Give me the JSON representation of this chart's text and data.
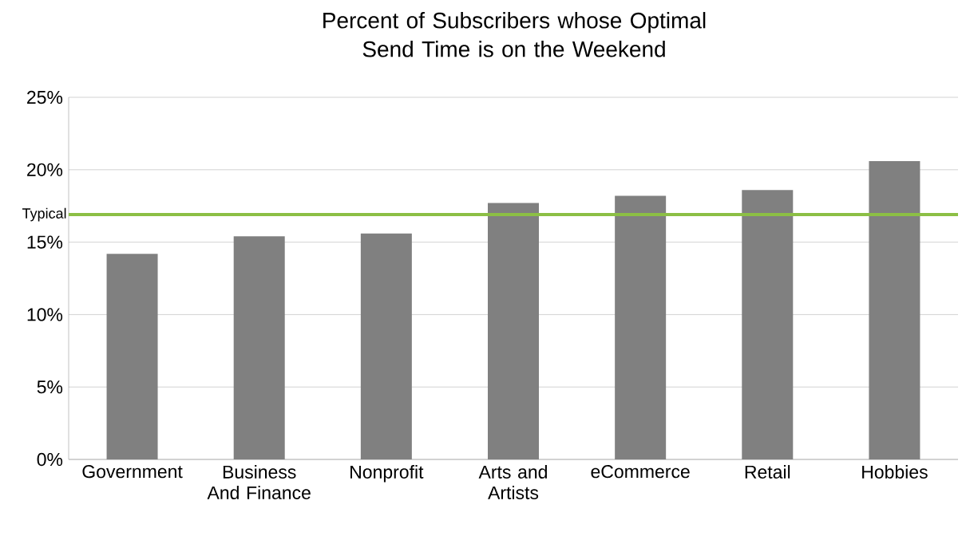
{
  "chart_data": {
    "type": "bar",
    "title": "Percent of Subscribers whose Optimal Send Time is on the Weekend",
    "categories": [
      "Government",
      "Business And Finance",
      "Nonprofit",
      "Arts and Artists",
      "eCommerce",
      "Retail",
      "Hobbies"
    ],
    "values": [
      14.2,
      15.4,
      15.6,
      17.7,
      18.2,
      18.6,
      20.6
    ],
    "color": "#808080",
    "ylim": [
      0,
      25
    ],
    "yticks": [
      {
        "value": 0,
        "label": "0%"
      },
      {
        "value": 5,
        "label": "5%"
      },
      {
        "value": 10,
        "label": "10%"
      },
      {
        "value": 15,
        "label": "15%"
      },
      {
        "value": 20,
        "label": "20%"
      },
      {
        "value": 25,
        "label": "25%"
      }
    ],
    "grid": "y",
    "ref_lines": [
      {
        "axis": "y",
        "value": 16.9,
        "label": "Typical",
        "color": "#8cbf45"
      }
    ]
  }
}
